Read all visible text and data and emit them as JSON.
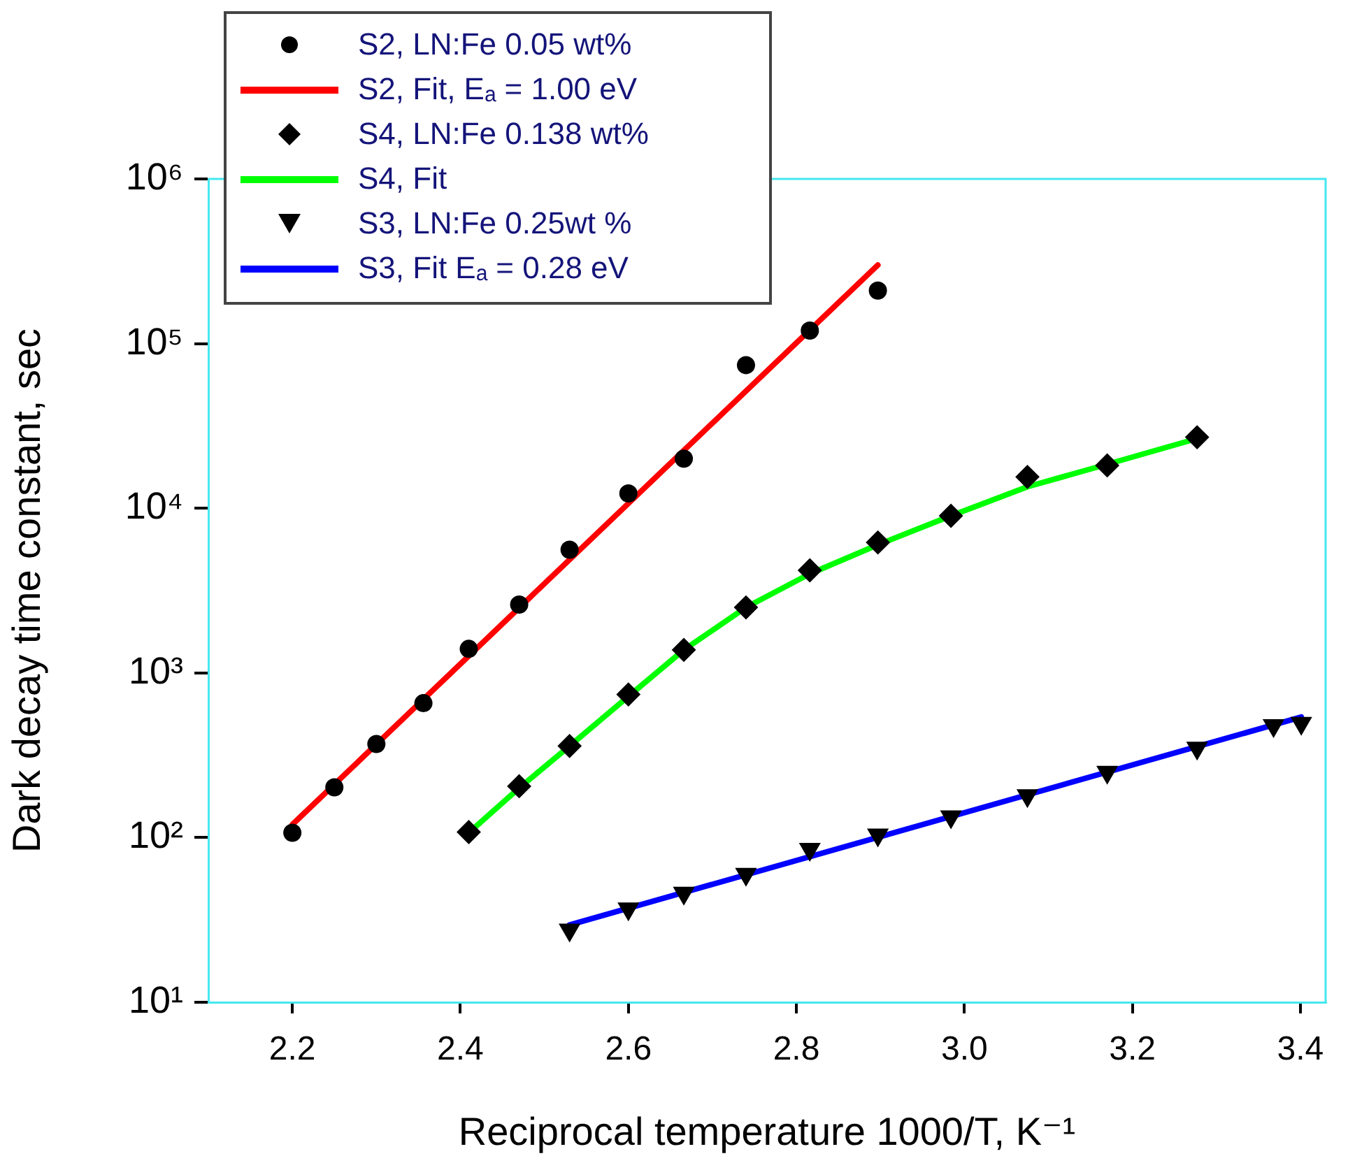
{
  "chart_data": {
    "type": "scatter",
    "xlabel": "Reciprocal temperature 1000/T, K⁻¹",
    "ylabel": "Dark decay time constant, sec",
    "log": "y",
    "grid": false,
    "legend": "top left",
    "xlim": [
      2.1,
      3.43
    ],
    "xticks": [
      2.2,
      2.4,
      2.6,
      2.8,
      {
        "value": 3,
        "label": "3.0"
      },
      3.2,
      3.4
    ],
    "ylim": [
      10,
      1000000
    ],
    "yticks": [
      {
        "value": 10,
        "label": "10¹"
      },
      {
        "value": 100,
        "label": "10²"
      },
      {
        "value": 1000,
        "label": "10³"
      },
      {
        "value": 10000,
        "label": "10⁴"
      },
      {
        "value": 100000,
        "label": "10⁵"
      },
      {
        "value": 1000000,
        "label": "10⁶"
      }
    ],
    "series": [
      {
        "name": "S2, LN:Fe 0.05 wt%",
        "type": "scatter",
        "marker": "circle",
        "color": "#000000",
        "x": [
          2.2,
          2.25,
          2.3,
          2.356,
          2.41,
          2.47,
          2.53,
          2.6,
          2.666,
          2.74,
          2.816,
          2.897
        ],
        "values": [
          107,
          202,
          370,
          655,
          1400,
          2600,
          5600,
          12300,
          20000,
          74000,
          120000,
          210000
        ]
      },
      {
        "name": "S2, Fit, Eₐ = 1.00 eV",
        "type": "line",
        "marker": "none",
        "color": "#ff0000",
        "x": [
          2.2,
          2.897
        ],
        "values": [
          120,
          300000
        ]
      },
      {
        "name": "S4, LN:Fe 0.138 wt%",
        "type": "scatter",
        "marker": "diamond",
        "color": "#000000",
        "x": [
          2.41,
          2.47,
          2.53,
          2.6,
          2.666,
          2.74,
          2.816,
          2.897,
          2.984,
          3.075,
          3.17,
          3.277
        ],
        "values": [
          108,
          205,
          360,
          740,
          1380,
          2500,
          4200,
          6200,
          9000,
          15500,
          18200,
          27000
        ]
      },
      {
        "name": "S4, Fit",
        "type": "line",
        "marker": "none",
        "color": "#00ff00",
        "x": [
          2.41,
          2.47,
          2.53,
          2.6,
          2.666,
          2.74,
          2.816,
          2.897,
          2.984,
          3.075,
          3.17,
          3.277
        ],
        "values": [
          107,
          200,
          360,
          720,
          1380,
          2500,
          4000,
          6000,
          9000,
          13500,
          18500,
          26500
        ]
      },
      {
        "name": "S3, LN:Fe 0.25wt %",
        "type": "scatter",
        "marker": "triangle",
        "color": "#000000",
        "x": [
          2.53,
          2.6,
          2.666,
          2.74,
          2.816,
          2.897,
          2.984,
          3.075,
          3.17,
          3.277,
          3.368,
          3.401
        ],
        "values": [
          27.5,
          37,
          46,
          60,
          85,
          104,
          134,
          180,
          250,
          350,
          480,
          495
        ]
      },
      {
        "name": "S3, Fit Eₐ = 0.28 eV",
        "type": "line",
        "marker": "none",
        "color": "#0000ff",
        "x": [
          2.53,
          3.401
        ],
        "values": [
          29.5,
          540
        ]
      }
    ]
  }
}
